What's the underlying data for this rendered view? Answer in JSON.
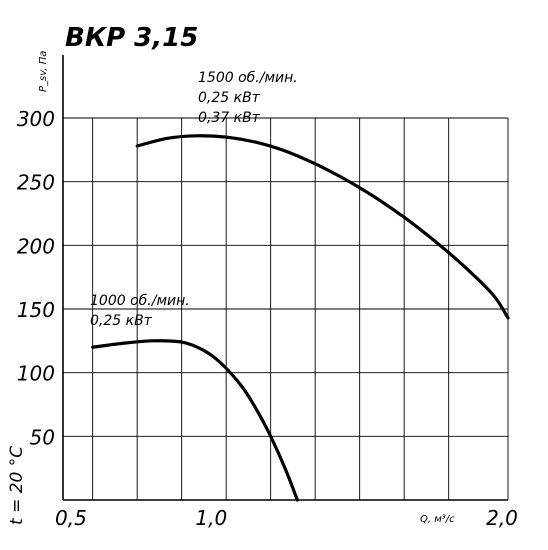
{
  "chart_data": {
    "type": "line",
    "title": "ВКР 3,15",
    "ylabel": "P_sv, Па",
    "xlabel": "Q, м³/с",
    "temperature_label": "t = 20 °C",
    "xlim": [
      0.5,
      2.0
    ],
    "ylim": [
      0,
      300
    ],
    "x_ticks": [
      {
        "value": 0.5,
        "label": "0,5"
      },
      {
        "value": 1.0,
        "label": "1,0"
      },
      {
        "value": 2.0,
        "label": "2,0"
      }
    ],
    "y_ticks": [
      {
        "value": 50,
        "label": "50"
      },
      {
        "value": 100,
        "label": "100"
      },
      {
        "value": 150,
        "label": "150"
      },
      {
        "value": 200,
        "label": "200"
      },
      {
        "value": 250,
        "label": "250"
      },
      {
        "value": 300,
        "label": "300"
      }
    ],
    "x_grid": [
      0.6,
      0.75,
      0.9,
      1.05,
      1.2,
      1.35,
      1.5,
      1.65,
      1.8,
      2.0
    ],
    "y_grid": [
      50,
      100,
      150,
      200,
      250,
      300
    ],
    "grid": true,
    "series": [
      {
        "labels": [
          "1500 об./мин.",
          "0,25 кВт",
          "0,37 кВт"
        ],
        "points": [
          [
            0.75,
            278
          ],
          [
            0.85,
            284
          ],
          [
            0.95,
            286
          ],
          [
            1.05,
            285
          ],
          [
            1.15,
            281
          ],
          [
            1.25,
            274
          ],
          [
            1.35,
            264
          ],
          [
            1.45,
            252
          ],
          [
            1.55,
            238
          ],
          [
            1.65,
            222
          ],
          [
            1.75,
            204
          ],
          [
            1.85,
            184
          ],
          [
            1.95,
            161
          ],
          [
            2.0,
            143
          ]
        ]
      },
      {
        "labels": [
          "1000 об./мин.",
          "0,25 кВт"
        ],
        "points": [
          [
            0.6,
            120
          ],
          [
            0.7,
            123
          ],
          [
            0.8,
            125
          ],
          [
            0.9,
            124
          ],
          [
            0.97,
            118
          ],
          [
            1.03,
            108
          ],
          [
            1.1,
            90
          ],
          [
            1.15,
            72
          ],
          [
            1.2,
            50
          ],
          [
            1.25,
            24
          ],
          [
            1.29,
            0
          ]
        ]
      }
    ]
  }
}
